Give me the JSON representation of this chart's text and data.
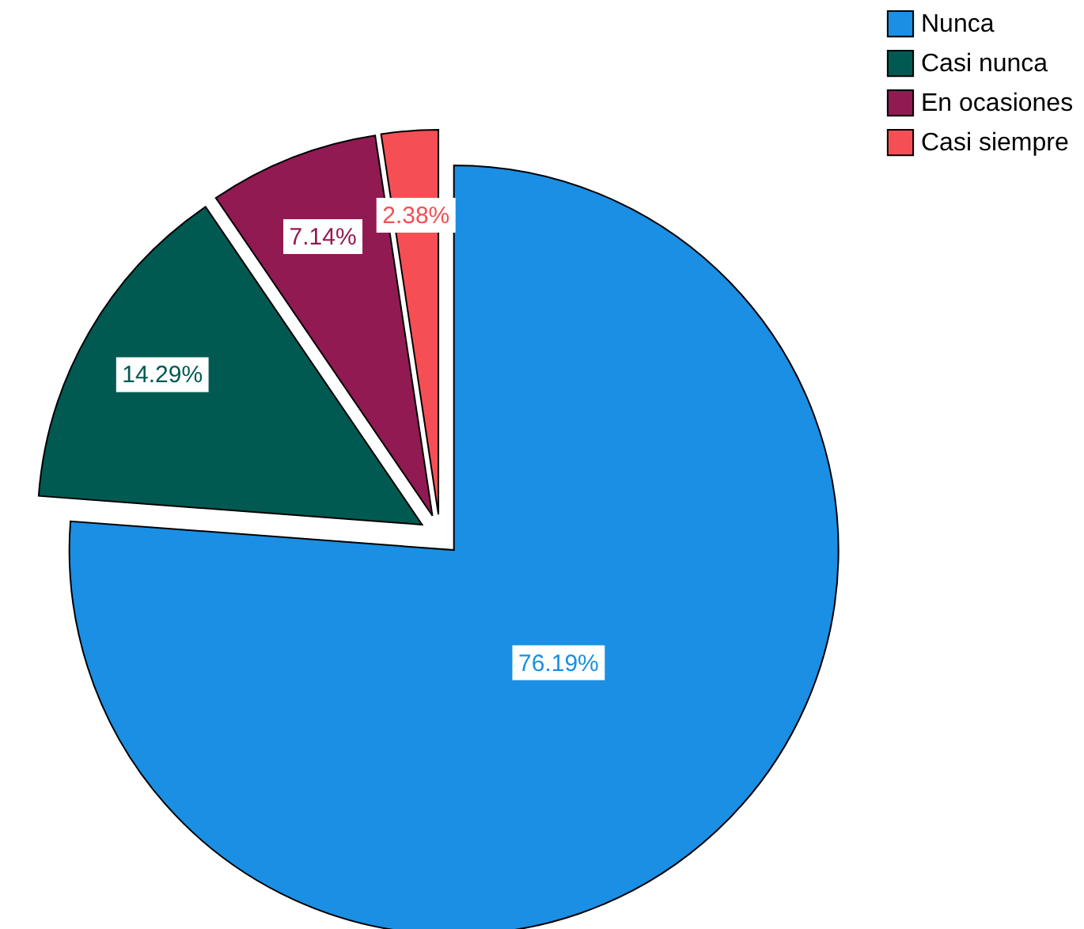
{
  "chart_data": {
    "type": "pie",
    "categories": [
      "Nunca",
      "Casi nunca",
      "En ocasiones",
      "Casi siempre"
    ],
    "values": [
      76.19,
      14.29,
      7.14,
      2.38
    ],
    "colors": [
      "#1a8fe3",
      "#005a52",
      "#911a52",
      "#f54f55"
    ],
    "value_labels": [
      "76.19%",
      "14.29%",
      "7.14%",
      "2.38%"
    ],
    "legend": "top right"
  }
}
